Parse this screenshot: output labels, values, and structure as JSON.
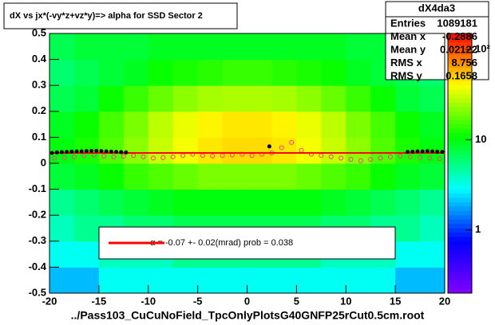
{
  "chart_data": {
    "type": "heatmap",
    "title": "dX vs    jx*(-vy*z+vz*y)=> alpha for SSD Sector 2",
    "x_label": "../Pass103_CuCuNoField_TpcOnlyPlotsG40GNFP25rCut0.5cm.root",
    "xlim": [
      -20,
      20
    ],
    "ylim": [
      -0.5,
      0.5
    ],
    "xticks": [
      -20,
      -15,
      -10,
      -5,
      0,
      5,
      10,
      15,
      20
    ],
    "yticks": [
      -0.5,
      -0.4,
      -0.3,
      -0.2,
      -0.1,
      0,
      0.1,
      0.2,
      0.3,
      0.4,
      0.5
    ],
    "zlim": [
      0.2,
      150
    ],
    "zticks": [
      1,
      10,
      {
        "value": 100,
        "label": "10²"
      }
    ],
    "z_log": true,
    "palette": [
      "#8000ff",
      "#0000ff",
      "#00ffff",
      "#00ff00",
      "#ffff00",
      "#ff0000"
    ],
    "x_edges": [
      -20,
      -17.5,
      -15,
      -12.5,
      -10,
      -7.5,
      -5,
      -2.5,
      0,
      2.5,
      5,
      7.5,
      10,
      12.5,
      15,
      17.5,
      20
    ],
    "y_edges": [
      -0.5,
      -0.4,
      -0.3,
      -0.2,
      -0.1,
      0,
      0.1,
      0.2,
      0.3,
      0.4,
      0.5
    ],
    "z": [
      [
        2,
        2,
        3,
        3,
        3,
        3,
        3,
        3,
        3,
        3,
        3,
        3,
        3,
        3,
        2,
        2
      ],
      [
        3,
        3,
        4,
        4,
        4,
        5,
        5,
        5,
        5,
        5,
        5,
        4,
        4,
        4,
        3,
        3
      ],
      [
        4,
        5,
        5,
        6,
        6,
        7,
        7,
        7,
        7,
        7,
        7,
        6,
        6,
        5,
        5,
        4
      ],
      [
        5,
        6,
        7,
        8,
        9,
        10,
        10,
        10,
        10,
        10,
        10,
        9,
        8,
        7,
        6,
        5
      ],
      [
        8,
        9,
        11,
        14,
        16,
        18,
        20,
        20,
        20,
        20,
        18,
        16,
        14,
        11,
        9,
        8
      ],
      [
        10,
        12,
        16,
        22,
        30,
        38,
        45,
        48,
        48,
        45,
        38,
        30,
        22,
        16,
        12,
        10
      ],
      [
        9,
        11,
        15,
        20,
        28,
        36,
        42,
        45,
        45,
        42,
        36,
        28,
        20,
        15,
        11,
        9
      ],
      [
        7,
        8,
        11,
        14,
        18,
        22,
        25,
        26,
        26,
        25,
        22,
        18,
        14,
        11,
        8,
        7
      ],
      [
        6,
        7,
        8,
        9,
        11,
        12,
        13,
        14,
        14,
        13,
        12,
        11,
        9,
        8,
        7,
        6
      ],
      [
        7,
        8,
        8,
        8,
        9,
        9,
        9,
        9,
        9,
        9,
        9,
        9,
        8,
        8,
        8,
        7
      ]
    ],
    "profile_black": {
      "color": "#000000",
      "x": [
        -19.75,
        -19.25,
        -18.75,
        -18.25,
        -17.75,
        -17.25,
        -16.75,
        -16.25,
        -15.75,
        -15.25,
        -14.75,
        -14.25,
        -13.75,
        -13.25,
        -12.75,
        -12.25,
        2.25,
        16.25,
        16.75,
        17.25,
        17.75,
        18.25,
        18.75,
        19.25,
        19.75
      ],
      "y": [
        0.04,
        0.042,
        0.043,
        0.044,
        0.045,
        0.046,
        0.046,
        0.047,
        0.048,
        0.048,
        0.047,
        0.046,
        0.045,
        0.044,
        0.043,
        0.042,
        0.065,
        0.044,
        0.045,
        0.046,
        0.046,
        0.047,
        0.046,
        0.045,
        0.044
      ]
    },
    "profile_pink": {
      "color": "#ff3399",
      "x": [
        -19.5,
        -18.5,
        -17.5,
        -16.5,
        -15.5,
        -14.5,
        -13.5,
        -12.5,
        -11.5,
        -10.5,
        -9.5,
        -8.5,
        -7.5,
        -6.5,
        -5.5,
        -4.5,
        -3.5,
        -2.5,
        -1.5,
        -0.5,
        0.5,
        1.5,
        2.5,
        3.5,
        4.5,
        5.5,
        6.5,
        7.5,
        8.5,
        9.5,
        10.5,
        11.5,
        12.5,
        13.5,
        14.5,
        15.5,
        16.5,
        17.5,
        18.5,
        19.5
      ],
      "y": [
        0.02,
        0.022,
        0.025,
        0.03,
        0.032,
        0.028,
        0.025,
        0.027,
        0.03,
        0.025,
        0.02,
        0.022,
        0.025,
        0.03,
        0.035,
        0.03,
        0.028,
        0.03,
        0.032,
        0.035,
        0.03,
        0.035,
        0.04,
        0.06,
        0.08,
        0.05,
        0.035,
        0.03,
        0.025,
        0.02,
        0.015,
        0.01,
        0.015,
        0.02,
        0.025,
        0.028,
        0.025,
        0.022,
        0.02,
        0.018
      ]
    },
    "fit": {
      "color": "#ff0000",
      "x": [
        -20,
        20
      ],
      "y": [
        0.04,
        0.04
      ],
      "legend": "α =    -0.07 +-     0.02(mrad) prob = 0.038"
    },
    "stats": {
      "title": "dX4da3",
      "rows": [
        [
          "Entries",
          1089181
        ],
        [
          "Mean x",
          -0.2886
        ],
        [
          "Mean y",
          0.02122
        ],
        [
          "RMS x",
          8.756
        ],
        [
          "RMS y",
          0.1658
        ]
      ]
    }
  }
}
